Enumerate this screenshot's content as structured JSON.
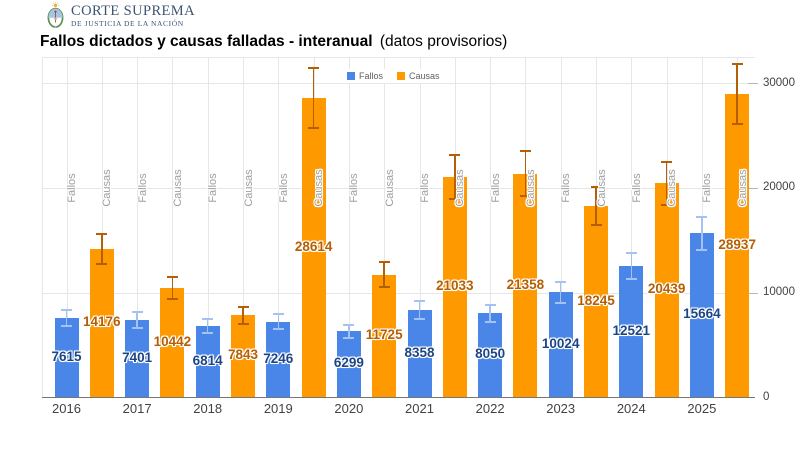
{
  "logo": {
    "org_name": "CORTE SUPREMA",
    "org_subtitle": "DE JUSTICIA DE LA NACIÓN",
    "arms_icon": "argentina-coat-of-arms"
  },
  "header": {
    "title_bold": "Fallos dictados y causas falladas - interanual",
    "title_regular": "(datos provisorios)"
  },
  "chart_data": {
    "type": "bar",
    "title": "Fallos dictados y causas falladas - interanual (datos provisorios)",
    "categories": [
      "2016",
      "2017",
      "2018",
      "2019",
      "2020",
      "2021",
      "2022",
      "2023",
      "2024",
      "2025"
    ],
    "series": [
      {
        "name": "Fallos",
        "color": "#4A86E8",
        "error_bar_color": "#A4C2F4",
        "value_label_color": "#1C4587",
        "values": [
          7615,
          7401,
          6814,
          7246,
          6299,
          8358,
          8050,
          10024,
          12521,
          15664
        ]
      },
      {
        "name": "Causas",
        "color": "#FF9900",
        "error_bar_color": "#B45F06",
        "value_label_color": "#B45F06",
        "values": [
          14176,
          10442,
          7843,
          28614,
          11725,
          21033,
          21358,
          18245,
          20439,
          28937
        ]
      }
    ],
    "error_bars_pct_approx": 10,
    "column_top_labels": true,
    "value_labels": "centered-on-bar",
    "ylim": [
      0,
      32500
    ],
    "yticks": [
      0,
      10000,
      20000,
      30000
    ],
    "ytick_labels": [
      "0",
      "10000",
      "20000",
      "30000"
    ],
    "yaxis_side": "right",
    "legend_position": "top",
    "grid": true,
    "grid_color": "#e6e6e6",
    "axis_line_color": "#757575",
    "column_label_color": "#9e9e9e",
    "year_label_color": "#424242"
  }
}
